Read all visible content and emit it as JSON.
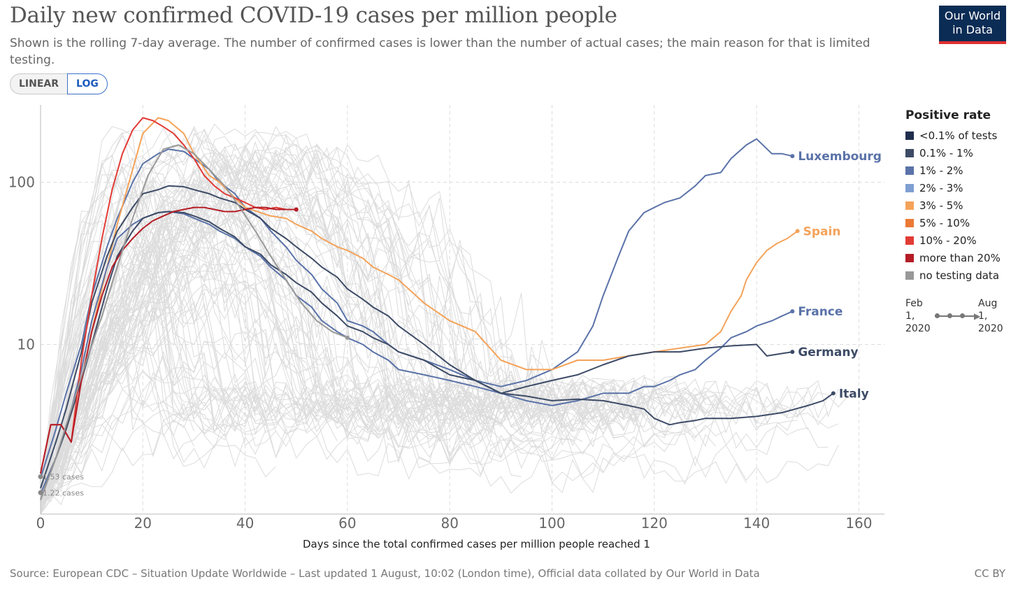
{
  "title": "Daily new confirmed COVID-19 cases per million people",
  "subtitle": "Shown is the rolling 7-day average. The number of confirmed cases is lower than the number of actual cases; the main reason for that is limited testing.",
  "scale_toggle": {
    "linear_label": "LINEAR",
    "log_label": "LOG",
    "selected": "LOG"
  },
  "logo": {
    "line1": "Our World",
    "line2": "in Data"
  },
  "legend": {
    "title": "Positive rate",
    "items": [
      {
        "label": "<0.1% of tests",
        "color": "#1f2d4d"
      },
      {
        "label": "0.1% - 1%",
        "color": "#3d4b66"
      },
      {
        "label": "1% - 2%",
        "color": "#5a72a8"
      },
      {
        "label": "2% - 3%",
        "color": "#7f9fd2"
      },
      {
        "label": "3% - 5%",
        "color": "#f4a35a"
      },
      {
        "label": "5% - 10%",
        "color": "#ec7a35"
      },
      {
        "label": "10% - 20%",
        "color": "#e23b35"
      },
      {
        "label": "more than 20%",
        "color": "#b51c25"
      },
      {
        "label": "no testing data",
        "color": "#999999"
      }
    ]
  },
  "timeline": {
    "start": "Feb 1, 2020",
    "end": "Aug 1, 2020"
  },
  "source": "Source: European CDC – Situation Update Worldwide – Last updated 1 August, 10:02 (London time), Official data collated by Our World in Data",
  "license": "CC BY",
  "chart_data": {
    "type": "line",
    "title": "Daily new confirmed COVID-19 cases per million people",
    "xlabel": "Days since the total confirmed cases per million people reached 1",
    "ylabel": "",
    "log_scale": true,
    "xlim": [
      0,
      165
    ],
    "ylim": [
      0.9,
      300
    ],
    "x_ticks": [
      0,
      20,
      40,
      60,
      80,
      100,
      120,
      140,
      160
    ],
    "y_ticks": [
      10,
      100
    ],
    "grid": true,
    "annotations": [
      {
        "text": "1.53 cases",
        "x": 0,
        "y": 1.53
      },
      {
        "text": "1.22 cases",
        "x": 0,
        "y": 1.22
      }
    ],
    "series": [
      {
        "name": "Luxembourg",
        "color": "#5a72a8",
        "label_color": "#5a72a8",
        "x": [
          0,
          3,
          5,
          8,
          10,
          13,
          15,
          18,
          20,
          23,
          25,
          28,
          30,
          33,
          35,
          38,
          40,
          43,
          45,
          48,
          50,
          53,
          55,
          58,
          60,
          63,
          65,
          68,
          70,
          75,
          80,
          85,
          90,
          95,
          100,
          105,
          108,
          110,
          113,
          115,
          118,
          120,
          122,
          125,
          128,
          130,
          133,
          135,
          138,
          140,
          143,
          145,
          147
        ],
        "y": [
          1.5,
          3,
          5,
          10,
          20,
          40,
          60,
          100,
          130,
          150,
          160,
          155,
          140,
          120,
          100,
          85,
          70,
          60,
          50,
          40,
          33,
          27,
          22,
          18,
          14,
          13,
          12,
          10,
          9,
          8,
          7,
          6,
          5.5,
          6,
          7,
          9,
          13,
          20,
          35,
          50,
          65,
          70,
          75,
          80,
          95,
          110,
          115,
          140,
          170,
          185,
          150,
          150,
          145
        ]
      },
      {
        "name": "Spain",
        "color": "#f4a35a",
        "label_color": "#f4a35a",
        "x": [
          0,
          3,
          5,
          8,
          10,
          13,
          15,
          18,
          20,
          23,
          25,
          28,
          30,
          33,
          35,
          38,
          40,
          43,
          45,
          48,
          50,
          53,
          55,
          58,
          60,
          63,
          65,
          68,
          70,
          75,
          80,
          85,
          90,
          95,
          100,
          105,
          110,
          115,
          120,
          125,
          130,
          133,
          135,
          137,
          138,
          140,
          142,
          144,
          146,
          148
        ],
        "y": [
          1.2,
          2,
          3,
          6,
          12,
          30,
          55,
          120,
          200,
          250,
          240,
          200,
          150,
          110,
          100,
          80,
          70,
          65,
          62,
          60,
          55,
          50,
          45,
          40,
          38,
          34,
          30,
          27,
          25,
          18,
          14,
          12,
          8,
          7,
          7,
          8,
          8,
          8.5,
          9,
          9.5,
          10,
          12,
          16,
          20,
          25,
          32,
          38,
          42,
          45,
          50
        ]
      },
      {
        "name": "France",
        "color": "#5a72a8",
        "label_color": "#5a72a8",
        "x": [
          0,
          3,
          5,
          8,
          10,
          13,
          15,
          18,
          20,
          23,
          25,
          28,
          30,
          33,
          35,
          38,
          40,
          43,
          45,
          48,
          50,
          53,
          55,
          58,
          60,
          63,
          65,
          68,
          70,
          75,
          80,
          85,
          90,
          95,
          100,
          105,
          110,
          115,
          118,
          120,
          123,
          125,
          128,
          130,
          133,
          135,
          138,
          140,
          143,
          145,
          147
        ],
        "y": [
          1.2,
          2,
          3,
          7,
          14,
          30,
          45,
          55,
          60,
          65,
          66,
          64,
          60,
          55,
          50,
          45,
          40,
          35,
          30,
          25,
          20,
          17,
          14,
          12,
          11,
          10,
          9,
          8,
          7,
          6.5,
          6,
          5.5,
          5,
          4.5,
          4.2,
          4.5,
          5,
          5,
          5.5,
          5.5,
          6,
          6.5,
          7,
          8,
          9.5,
          11,
          12,
          13,
          14,
          15,
          16
        ]
      },
      {
        "name": "Germany",
        "color": "#3d4b66",
        "label_color": "#3d4b66",
        "x": [
          0,
          3,
          5,
          8,
          10,
          13,
          15,
          18,
          20,
          23,
          25,
          28,
          30,
          33,
          35,
          38,
          40,
          43,
          45,
          48,
          50,
          53,
          55,
          58,
          60,
          63,
          65,
          68,
          70,
          75,
          80,
          85,
          90,
          95,
          100,
          105,
          110,
          115,
          120,
          125,
          130,
          135,
          140,
          142,
          145,
          147
        ],
        "y": [
          1.1,
          2,
          3,
          6,
          10,
          22,
          35,
          50,
          60,
          65,
          66,
          65,
          62,
          57,
          52,
          46,
          40,
          36,
          31,
          27,
          24,
          21,
          18,
          15,
          13,
          12,
          11,
          10,
          9,
          8,
          6.5,
          6,
          5,
          5.5,
          6,
          6.5,
          7.5,
          8.5,
          9,
          9,
          9.5,
          9.8,
          10,
          8.5,
          8.8,
          9
        ]
      },
      {
        "name": "Italy",
        "color": "#3d4b66",
        "label_color": "#3d4b66",
        "x": [
          0,
          3,
          5,
          8,
          10,
          13,
          15,
          18,
          20,
          23,
          25,
          28,
          30,
          33,
          35,
          38,
          40,
          43,
          45,
          48,
          50,
          53,
          55,
          58,
          60,
          63,
          65,
          68,
          70,
          75,
          80,
          85,
          90,
          95,
          100,
          105,
          110,
          115,
          118,
          120,
          123,
          125,
          128,
          130,
          135,
          140,
          145,
          150,
          153,
          155
        ],
        "y": [
          1.3,
          2.5,
          4,
          9,
          18,
          35,
          50,
          70,
          85,
          90,
          95,
          94,
          90,
          85,
          80,
          75,
          68,
          60,
          52,
          45,
          40,
          34,
          30,
          26,
          22,
          19,
          17,
          15,
          13,
          10,
          7.5,
          6,
          5,
          4.8,
          4.5,
          4.6,
          4.5,
          4.2,
          4,
          3.5,
          3.2,
          3.3,
          3.4,
          3.5,
          3.5,
          3.6,
          3.8,
          4.2,
          4.5,
          5
        ]
      },
      {
        "name": "",
        "color": "#e23b35",
        "label_color": "",
        "x": [
          0,
          2,
          4,
          6,
          8,
          10,
          12,
          14,
          16,
          18,
          20,
          22,
          24,
          26,
          28,
          30,
          32,
          34,
          36,
          38,
          40,
          42,
          44,
          46,
          48,
          50
        ],
        "y": [
          1.6,
          3.2,
          3.2,
          2.5,
          8,
          20,
          45,
          90,
          150,
          210,
          250,
          240,
          220,
          200,
          170,
          140,
          110,
          95,
          85,
          80,
          75,
          70,
          68,
          70,
          68,
          68
        ]
      },
      {
        "name": "",
        "color": "#b51c25",
        "label_color": "",
        "x": [
          0,
          2,
          4,
          6,
          8,
          10,
          12,
          14,
          16,
          18,
          20,
          22,
          24,
          26,
          28,
          30,
          32,
          34,
          36,
          38,
          40,
          42,
          44,
          46,
          48,
          50
        ],
        "y": [
          1.6,
          3.2,
          3.2,
          2.5,
          6,
          12,
          20,
          30,
          38,
          45,
          52,
          58,
          62,
          66,
          68,
          70,
          70,
          68,
          66,
          66,
          68,
          70,
          70,
          68,
          68,
          68
        ]
      },
      {
        "name": "",
        "color": "#999999",
        "label_color": "",
        "x": [
          0,
          3,
          6,
          9,
          12,
          15,
          18,
          21,
          24,
          27,
          30,
          33,
          36,
          39,
          42,
          45,
          48,
          51,
          54,
          57,
          60
        ],
        "y": [
          1.1,
          2,
          4,
          8,
          15,
          30,
          60,
          110,
          160,
          170,
          150,
          120,
          95,
          70,
          50,
          35,
          25,
          18,
          14,
          12,
          11
        ]
      }
    ]
  }
}
